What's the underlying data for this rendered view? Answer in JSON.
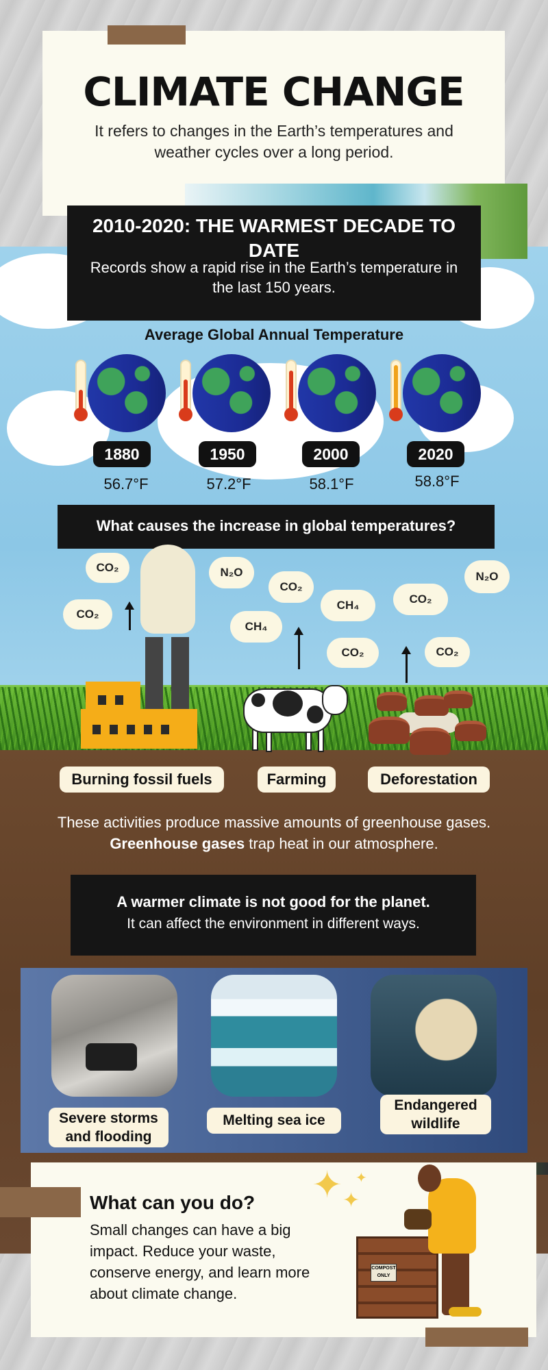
{
  "header": {
    "title": "CLIMATE CHANGE",
    "subtitle": "It refers to changes in the Earth’s temperatures and weather cycles over a long period."
  },
  "warmest": {
    "title": "2010-2020: THE WARMEST DECADE TO DATE",
    "text": "Records show a rapid rise in the Earth’s temperature in the last 150 years."
  },
  "temperature": {
    "heading": "Average Global Annual Temperature",
    "items": [
      {
        "year": "1880",
        "value": "56.7°F"
      },
      {
        "year": "1950",
        "value": "57.2°F"
      },
      {
        "year": "2000",
        "value": "58.1°F"
      },
      {
        "year": "2020",
        "value": "58.8°F"
      }
    ]
  },
  "causes": {
    "question": "What causes the increase in global temperatures?",
    "gases": [
      "CO₂",
      "CO₂",
      "N₂O",
      "CO₂",
      "CH₄",
      "CH₄",
      "CO₂",
      "CO₂",
      "N₂O",
      "CO₂"
    ],
    "labels": [
      "Burning fossil fuels",
      "Farming",
      "Deforestation"
    ]
  },
  "greenhouse": {
    "text_before": "These activities produce massive amounts of greenhouse gases. ",
    "bold": "Greenhouse gases",
    "text_after": " trap heat in our atmosphere."
  },
  "effects": {
    "line1": "A warmer climate is not good for the planet.",
    "line2": "It can affect the environment in different ways.",
    "items": [
      "Severe storms and flooding",
      "Melting sea ice",
      "Endangered wildlife"
    ]
  },
  "action": {
    "title": "What can you do?",
    "text": "Small changes can have a big impact. Reduce your waste, conserve energy, and learn more about climate change.",
    "compost_tag": "COMPOST ONLY"
  },
  "colors": {
    "sky": "#9fd2ec",
    "soil": "#6d4a2f",
    "factory": "#f5ad18",
    "banner": "#151515",
    "paper": "#fbfaef"
  }
}
